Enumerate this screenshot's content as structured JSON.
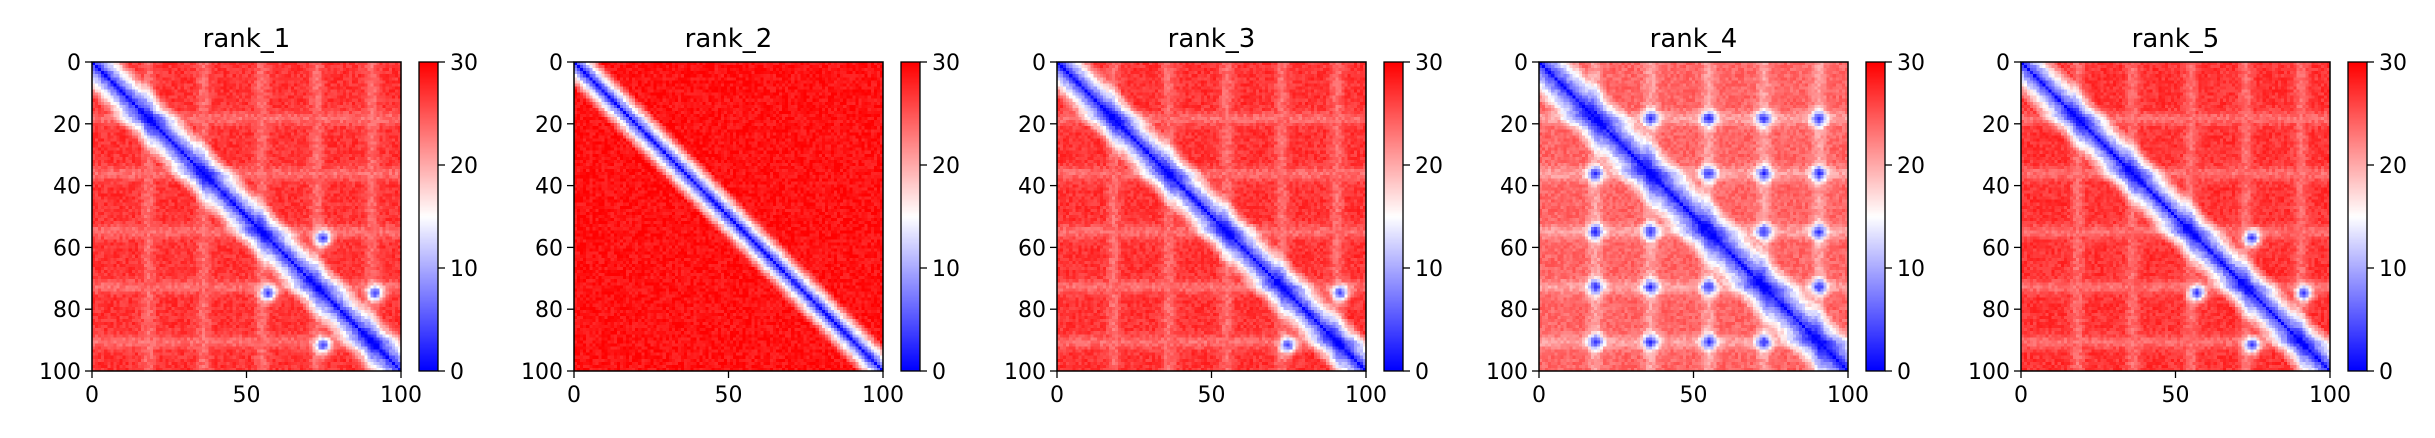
{
  "chart_data": {
    "type": "heatmap",
    "colormap": "bwr",
    "colors": {
      "low": "#0000ff",
      "mid": "#ffffff",
      "high": "#ff0000"
    },
    "vmin": 0,
    "vmax": 30,
    "xlim": [
      0,
      100
    ],
    "ylim": [
      100,
      0
    ],
    "x_ticks": [
      0,
      50,
      100
    ],
    "y_ticks": [
      0,
      20,
      40,
      60,
      80,
      100
    ],
    "colorbar_ticks": [
      0,
      10,
      20,
      30
    ],
    "grid": false,
    "panels": [
      {
        "title": "rank_1",
        "band_width": 8,
        "background": 27,
        "contacts": [
          [
            57,
            75
          ],
          [
            75,
            92
          ]
        ],
        "grid_periods": [
          18,
          36,
          55,
          73,
          91
        ]
      },
      {
        "title": "rank_2",
        "band_width": 6,
        "background": 29,
        "contacts": [],
        "grid_periods": []
      },
      {
        "title": "rank_3",
        "band_width": 8,
        "background": 27,
        "contacts": [
          [
            75,
            92
          ]
        ],
        "grid_periods": [
          18,
          36,
          55,
          73,
          91
        ]
      },
      {
        "title": "rank_4",
        "band_width": 9,
        "background": 24,
        "contacts": [
          [
            18,
            36
          ],
          [
            18,
            55
          ],
          [
            18,
            73
          ],
          [
            18,
            91
          ],
          [
            36,
            55
          ],
          [
            36,
            73
          ],
          [
            55,
            73
          ],
          [
            55,
            91
          ],
          [
            73,
            91
          ],
          [
            36,
            91
          ]
        ],
        "grid_periods": [
          18,
          36,
          55,
          73,
          91
        ]
      },
      {
        "title": "rank_5",
        "band_width": 8,
        "background": 27,
        "contacts": [
          [
            57,
            75
          ],
          [
            75,
            92
          ]
        ],
        "grid_periods": [
          18,
          36,
          55,
          73,
          91
        ]
      }
    ]
  }
}
